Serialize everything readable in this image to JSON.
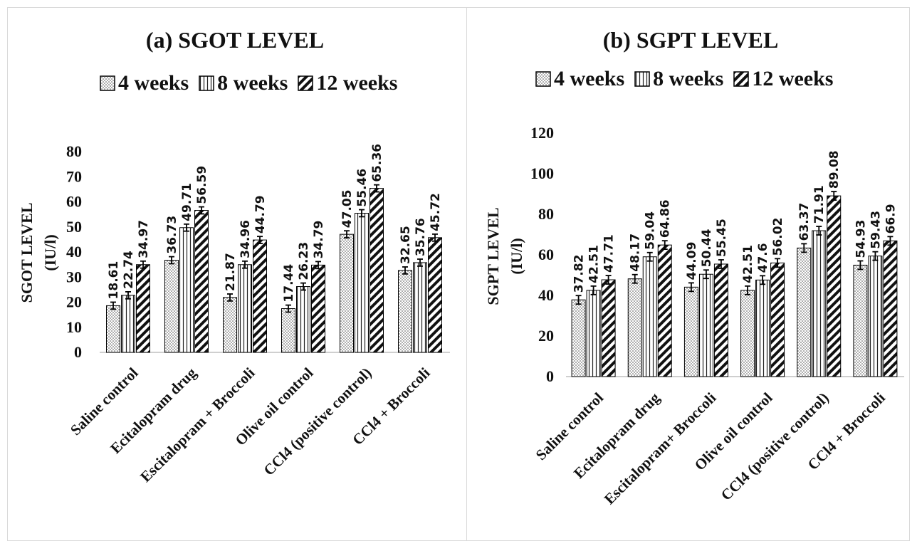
{
  "chart_data": [
    {
      "type": "bar",
      "title": "(a) SGOT LEVEL",
      "ylabel": [
        "SGOT LEVEL",
        "(IU/l)"
      ],
      "xlabel": "",
      "ylim": [
        0,
        80
      ],
      "yticks": [
        0,
        10,
        20,
        30,
        40,
        50,
        60,
        70,
        80
      ],
      "categories": [
        "Saline control",
        "Ecitalopram drug",
        "Escitalopram + Broccoli",
        "Olive oil control",
        "CCl4 (positive control)",
        "CCl4 + Broccoli"
      ],
      "legend_position": "top",
      "series": [
        {
          "name": "4 weeks",
          "values": [
            18.61,
            36.73,
            21.87,
            17.44,
            47.05,
            32.65
          ],
          "labels": [
            "18.61",
            "36.73",
            "21.87",
            "17.44",
            "47.05",
            "32.65"
          ]
        },
        {
          "name": "8 weeks",
          "values": [
            22.74,
            49.71,
            34.96,
            26.23,
            55.46,
            35.76
          ],
          "labels": [
            "22.74",
            "49.71",
            "34.96",
            "26.23",
            "55.46",
            "35.76"
          ]
        },
        {
          "name": "12 weeks",
          "values": [
            34.97,
            56.59,
            44.79,
            34.79,
            65.36,
            45.72
          ],
          "labels": [
            "34.97",
            "56.59",
            "44.79",
            "34.79",
            "65.36",
            "45.72"
          ]
        }
      ]
    },
    {
      "type": "bar",
      "title": "(b) SGPT LEVEL",
      "ylabel": [
        "SGPT LEVEL",
        "(IU/l)"
      ],
      "xlabel": "",
      "ylim": [
        0,
        120
      ],
      "yticks": [
        0,
        20,
        40,
        60,
        80,
        100,
        120
      ],
      "categories": [
        "Saline control",
        "Ecitalopram drug",
        "Escitalopram+ Broccoli",
        "Olive oil control",
        "CCl4 (positive control)",
        "CCl4 + Broccoli"
      ],
      "legend_position": "top",
      "series": [
        {
          "name": "4 weeks",
          "values": [
            37.82,
            48.17,
            44.09,
            42.51,
            63.37,
            54.93
          ],
          "labels": [
            "37.82",
            "48.17",
            "44.09",
            "42.51",
            "63.37",
            "54.93"
          ]
        },
        {
          "name": "8 weeks",
          "values": [
            42.51,
            59.04,
            50.44,
            47.6,
            71.91,
            59.43
          ],
          "labels": [
            "42.51",
            "59.04",
            "50.44",
            "47.6",
            "71.91",
            "59.43"
          ]
        },
        {
          "name": "12 weeks",
          "values": [
            47.71,
            64.86,
            55.45,
            56.02,
            89.08,
            66.9
          ],
          "labels": [
            "47.71",
            "64.86",
            "55.45",
            "56.02",
            "89.08",
            "66.9"
          ]
        }
      ]
    }
  ]
}
